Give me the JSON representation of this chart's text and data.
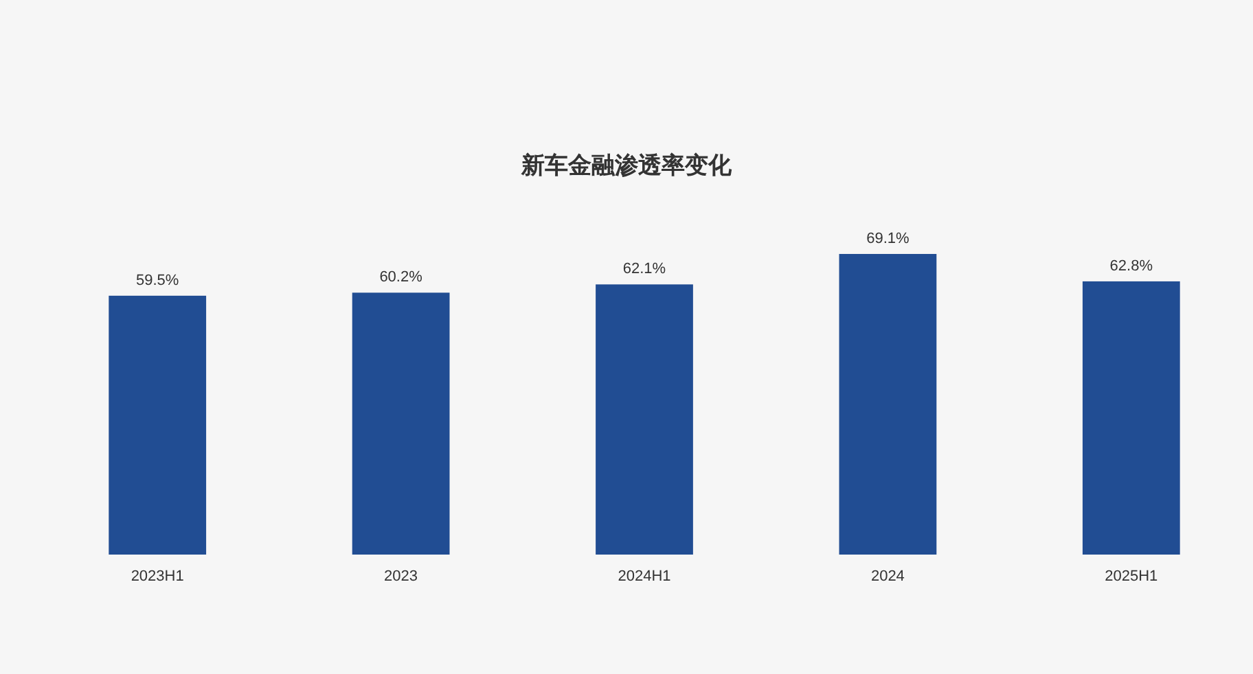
{
  "chart_data": {
    "type": "bar",
    "title": "新车金融渗透率变化",
    "categories": [
      "2023H1",
      "2023",
      "2024H1",
      "2024",
      "2025H1"
    ],
    "values": [
      59.5,
      60.2,
      62.1,
      69.1,
      62.8
    ],
    "value_labels": [
      "59.5%",
      "60.2%",
      "62.1%",
      "69.1%",
      "62.8%"
    ],
    "color": "#214d93"
  }
}
